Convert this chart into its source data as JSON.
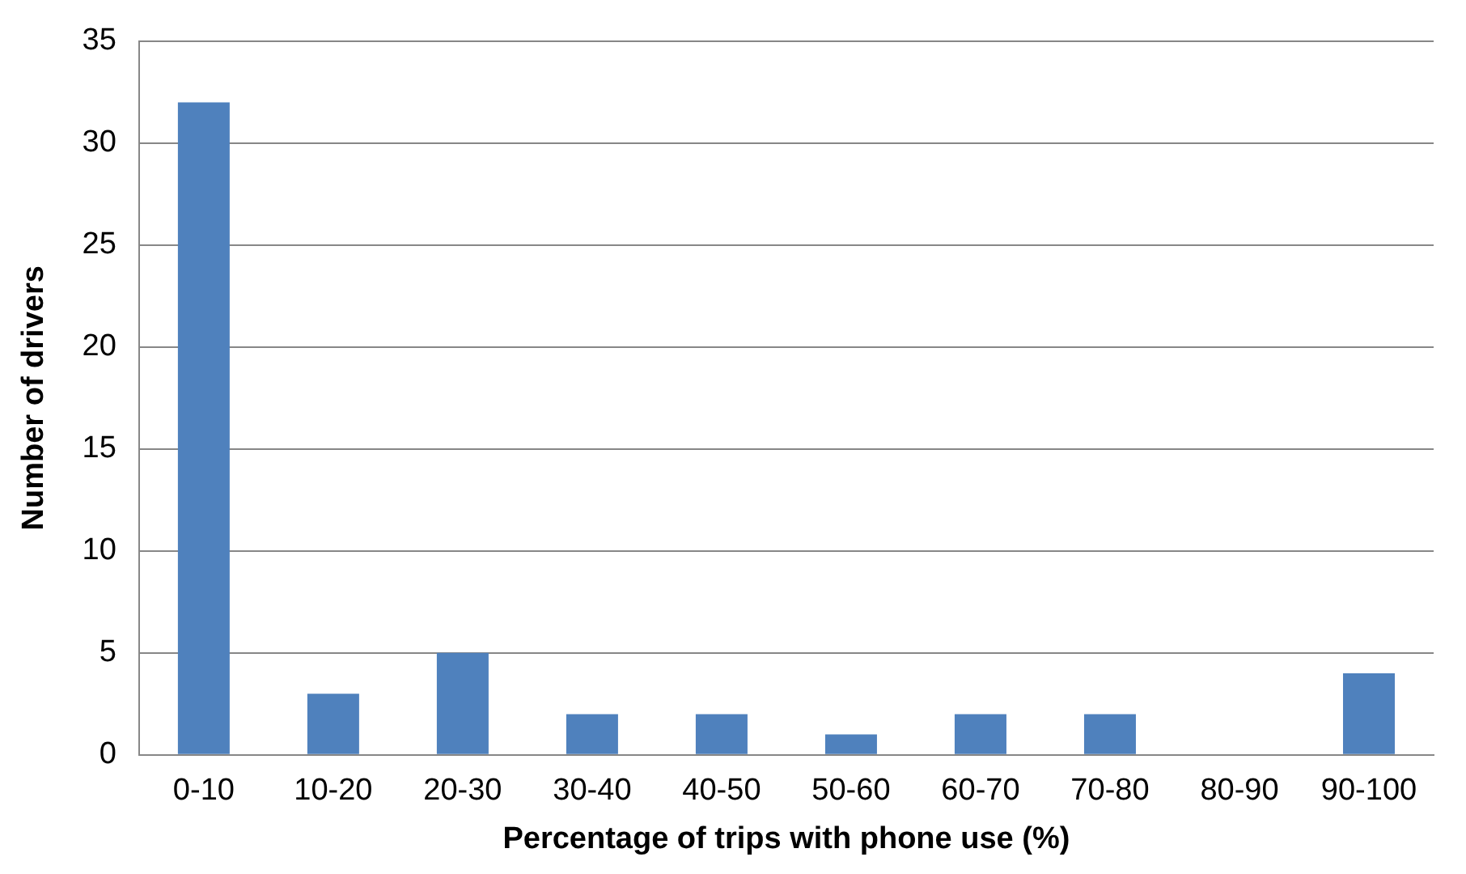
{
  "chart_data": {
    "type": "bar",
    "xlabel": "Percentage of trips with phone use (%)",
    "ylabel": "Number of drivers",
    "categories": [
      "0-10",
      "10-20",
      "20-30",
      "30-40",
      "40-50",
      "50-60",
      "60-70",
      "70-80",
      "80-90",
      "90-100"
    ],
    "values": [
      32,
      3,
      5,
      2,
      2,
      1,
      2,
      2,
      0,
      4
    ],
    "color": "#4f81bd",
    "ylim": [
      0,
      35
    ],
    "yticks": [
      0,
      5,
      10,
      15,
      20,
      25,
      30,
      35
    ],
    "grid": "y",
    "legend": false
  }
}
